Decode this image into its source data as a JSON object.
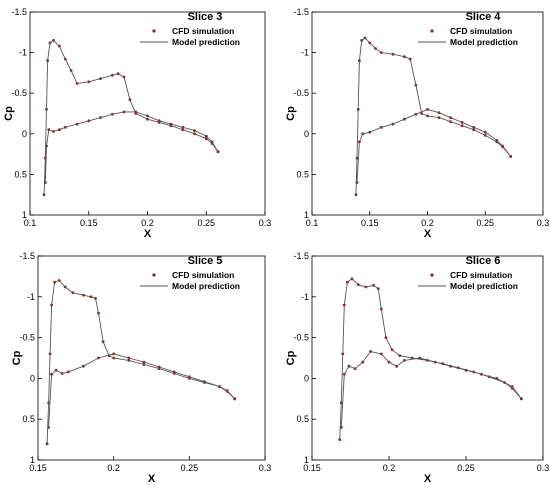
{
  "figure": {
    "bg": "#ffffff"
  },
  "colors": {
    "cfd": "#9b1b1b",
    "model": "#555555",
    "axis": "#000000"
  },
  "chart_data": [
    {
      "type": "line",
      "title": "Slice 3",
      "xlabel": "X",
      "ylabel": "Cp",
      "xlim": [
        0.1,
        0.3
      ],
      "ylim": [
        1,
        -1.5
      ],
      "y_inverted": true,
      "xticks": [
        "0.1",
        "0.15",
        "0.2",
        "0.25",
        "0.3"
      ],
      "xtick_values": [
        0.1,
        0.15,
        0.2,
        0.25,
        0.3
      ],
      "yticks": [
        "-1.5",
        "-1",
        "-0.5",
        "0",
        "0.5",
        "1"
      ],
      "ytick_values": [
        -1.5,
        -1,
        -0.5,
        0,
        0.5,
        1
      ],
      "legend": {
        "placement": "top-right",
        "entries": [
          "CFD simulation",
          "Model prediction"
        ]
      },
      "series": [
        {
          "name": "CFD simulation",
          "style": "markers",
          "x": [
            0.112,
            0.113,
            0.114,
            0.115,
            0.117,
            0.12,
            0.125,
            0.13,
            0.135,
            0.14,
            0.15,
            0.16,
            0.17,
            0.175,
            0.18,
            0.185,
            0.19,
            0.2,
            0.21,
            0.22,
            0.23,
            0.24,
            0.25,
            0.255,
            0.26,
            0.113,
            0.114,
            0.116,
            0.12,
            0.125,
            0.13,
            0.14,
            0.15,
            0.16,
            0.17,
            0.18,
            0.19,
            0.2,
            0.21,
            0.22,
            0.23,
            0.24,
            0.25,
            0.255,
            0.26
          ],
          "y": [
            0.75,
            0.3,
            -0.3,
            -0.9,
            -1.12,
            -1.15,
            -1.08,
            -0.92,
            -0.78,
            -0.62,
            -0.64,
            -0.68,
            -0.72,
            -0.74,
            -0.7,
            -0.42,
            -0.25,
            -0.18,
            -0.14,
            -0.1,
            -0.05,
            0.0,
            0.06,
            0.12,
            0.22,
            0.6,
            0.15,
            -0.05,
            -0.03,
            -0.05,
            -0.08,
            -0.12,
            -0.16,
            -0.2,
            -0.24,
            -0.27,
            -0.27,
            -0.22,
            -0.16,
            -0.12,
            -0.08,
            -0.04,
            0.03,
            0.1,
            0.22
          ]
        },
        {
          "name": "Model prediction",
          "style": "line",
          "x": [
            0.112,
            0.113,
            0.114,
            0.115,
            0.117,
            0.12,
            0.125,
            0.13,
            0.135,
            0.14,
            0.15,
            0.16,
            0.17,
            0.175,
            0.18,
            0.185,
            0.19,
            0.2,
            0.21,
            0.22,
            0.23,
            0.24,
            0.25,
            0.255,
            0.26,
            0.113,
            0.114,
            0.116,
            0.12,
            0.125,
            0.13,
            0.14,
            0.15,
            0.16,
            0.17,
            0.18,
            0.19,
            0.2,
            0.21,
            0.22,
            0.23,
            0.24,
            0.25,
            0.255,
            0.26
          ],
          "y": [
            0.75,
            0.3,
            -0.3,
            -0.9,
            -1.12,
            -1.15,
            -1.08,
            -0.92,
            -0.78,
            -0.62,
            -0.64,
            -0.68,
            -0.72,
            -0.74,
            -0.7,
            -0.42,
            -0.25,
            -0.18,
            -0.14,
            -0.1,
            -0.05,
            0.0,
            0.06,
            0.12,
            0.22,
            0.6,
            0.15,
            -0.05,
            -0.03,
            -0.05,
            -0.08,
            -0.12,
            -0.16,
            -0.2,
            -0.24,
            -0.27,
            -0.27,
            -0.22,
            -0.16,
            -0.12,
            -0.08,
            -0.04,
            0.03,
            0.1,
            0.22
          ]
        }
      ]
    },
    {
      "type": "line",
      "title": "Slice 4",
      "xlabel": "X",
      "ylabel": "Cp",
      "xlim": [
        0.1,
        0.3
      ],
      "ylim": [
        1,
        -1.5
      ],
      "y_inverted": true,
      "xticks": [
        "0.1",
        "0.15",
        "0.2",
        "0.25",
        "0.3"
      ],
      "xtick_values": [
        0.1,
        0.15,
        0.2,
        0.25,
        0.3
      ],
      "yticks": [
        "-1.5",
        "-1",
        "-0.5",
        "0",
        "0.5",
        "1"
      ],
      "ytick_values": [
        -1.5,
        -1,
        -0.5,
        0,
        0.5,
        1
      ],
      "legend": {
        "placement": "top-right",
        "entries": [
          "CFD simulation",
          "Model prediction"
        ]
      },
      "series": [
        {
          "name": "CFD simulation",
          "style": "markers",
          "x": [
            0.138,
            0.139,
            0.14,
            0.141,
            0.143,
            0.146,
            0.15,
            0.155,
            0.16,
            0.17,
            0.18,
            0.185,
            0.19,
            0.195,
            0.2,
            0.21,
            0.22,
            0.23,
            0.24,
            0.25,
            0.26,
            0.265,
            0.272,
            0.139,
            0.141,
            0.144,
            0.15,
            0.16,
            0.17,
            0.18,
            0.19,
            0.2,
            0.21,
            0.22,
            0.23,
            0.24,
            0.25,
            0.26,
            0.265,
            0.272
          ],
          "y": [
            0.75,
            0.3,
            -0.3,
            -0.9,
            -1.15,
            -1.18,
            -1.12,
            -1.05,
            -1.0,
            -0.98,
            -0.95,
            -0.92,
            -0.6,
            -0.25,
            -0.22,
            -0.2,
            -0.15,
            -0.1,
            -0.05,
            0.02,
            0.1,
            0.16,
            0.28,
            0.6,
            0.1,
            0.0,
            -0.02,
            -0.08,
            -0.12,
            -0.18,
            -0.24,
            -0.3,
            -0.26,
            -0.2,
            -0.14,
            -0.08,
            -0.02,
            0.08,
            0.15,
            0.28
          ]
        },
        {
          "name": "Model prediction",
          "style": "line",
          "x": [
            0.138,
            0.139,
            0.14,
            0.141,
            0.143,
            0.146,
            0.15,
            0.155,
            0.16,
            0.17,
            0.18,
            0.185,
            0.19,
            0.195,
            0.2,
            0.21,
            0.22,
            0.23,
            0.24,
            0.25,
            0.26,
            0.265,
            0.272,
            0.139,
            0.141,
            0.144,
            0.15,
            0.16,
            0.17,
            0.18,
            0.19,
            0.2,
            0.21,
            0.22,
            0.23,
            0.24,
            0.25,
            0.26,
            0.265,
            0.272
          ],
          "y": [
            0.75,
            0.3,
            -0.3,
            -0.9,
            -1.15,
            -1.18,
            -1.12,
            -1.05,
            -1.0,
            -0.98,
            -0.95,
            -0.92,
            -0.6,
            -0.25,
            -0.22,
            -0.2,
            -0.15,
            -0.1,
            -0.05,
            0.02,
            0.1,
            0.16,
            0.28,
            0.6,
            0.1,
            0.0,
            -0.02,
            -0.08,
            -0.12,
            -0.18,
            -0.24,
            -0.3,
            -0.26,
            -0.2,
            -0.14,
            -0.08,
            -0.02,
            0.08,
            0.15,
            0.28
          ]
        }
      ]
    },
    {
      "type": "line",
      "title": "Slice 5",
      "xlabel": "X",
      "ylabel": "Cp",
      "xlim": [
        0.15,
        0.3
      ],
      "ylim": [
        1,
        -1.5
      ],
      "y_inverted": true,
      "xticks": [
        "0.15",
        "0.2",
        "0.25",
        "0.3"
      ],
      "xtick_values": [
        0.15,
        0.2,
        0.25,
        0.3
      ],
      "yticks": [
        "-1.5",
        "-1",
        "-0.5",
        "0",
        "0.5",
        "1"
      ],
      "ytick_values": [
        -1.5,
        -1,
        -0.5,
        0,
        0.5,
        1
      ],
      "legend": {
        "placement": "top-right",
        "entries": [
          "CFD simulation",
          "Model prediction"
        ]
      },
      "series": [
        {
          "name": "CFD simulation",
          "style": "markers",
          "x": [
            0.156,
            0.157,
            0.158,
            0.159,
            0.161,
            0.164,
            0.168,
            0.173,
            0.18,
            0.185,
            0.188,
            0.19,
            0.193,
            0.197,
            0.2,
            0.21,
            0.22,
            0.23,
            0.24,
            0.25,
            0.26,
            0.27,
            0.275,
            0.28,
            0.157,
            0.159,
            0.162,
            0.166,
            0.17,
            0.18,
            0.19,
            0.2,
            0.21,
            0.22,
            0.23,
            0.24,
            0.25,
            0.26,
            0.27,
            0.275,
            0.28
          ],
          "y": [
            0.8,
            0.3,
            -0.3,
            -0.9,
            -1.18,
            -1.2,
            -1.12,
            -1.05,
            -1.02,
            -1.0,
            -0.98,
            -0.8,
            -0.45,
            -0.28,
            -0.25,
            -0.22,
            -0.17,
            -0.12,
            -0.06,
            0.0,
            0.05,
            0.1,
            0.16,
            0.25,
            0.6,
            -0.05,
            -0.1,
            -0.06,
            -0.08,
            -0.15,
            -0.25,
            -0.3,
            -0.25,
            -0.2,
            -0.14,
            -0.08,
            -0.02,
            0.04,
            0.1,
            0.15,
            0.25
          ]
        },
        {
          "name": "Model prediction",
          "style": "line",
          "x": [
            0.156,
            0.157,
            0.158,
            0.159,
            0.161,
            0.164,
            0.168,
            0.173,
            0.18,
            0.185,
            0.188,
            0.19,
            0.193,
            0.197,
            0.2,
            0.21,
            0.22,
            0.23,
            0.24,
            0.25,
            0.26,
            0.27,
            0.275,
            0.28,
            0.157,
            0.159,
            0.162,
            0.166,
            0.17,
            0.18,
            0.19,
            0.2,
            0.21,
            0.22,
            0.23,
            0.24,
            0.25,
            0.26,
            0.27,
            0.275,
            0.28
          ],
          "y": [
            0.8,
            0.3,
            -0.3,
            -0.9,
            -1.18,
            -1.2,
            -1.12,
            -1.05,
            -1.02,
            -1.0,
            -0.98,
            -0.8,
            -0.45,
            -0.28,
            -0.25,
            -0.22,
            -0.17,
            -0.12,
            -0.06,
            0.0,
            0.05,
            0.1,
            0.16,
            0.25,
            0.6,
            -0.05,
            -0.1,
            -0.06,
            -0.08,
            -0.15,
            -0.25,
            -0.3,
            -0.25,
            -0.2,
            -0.14,
            -0.08,
            -0.02,
            0.04,
            0.1,
            0.15,
            0.25
          ]
        }
      ]
    },
    {
      "type": "line",
      "title": "Slice 6",
      "xlabel": "X",
      "ylabel": "Cp",
      "xlim": [
        0.15,
        0.3
      ],
      "ylim": [
        1,
        -1.5
      ],
      "y_inverted": true,
      "xticks": [
        "0.15",
        "0.2",
        "0.25",
        "0.3"
      ],
      "xtick_values": [
        0.15,
        0.2,
        0.25,
        0.3
      ],
      "yticks": [
        "-1.5",
        "-1",
        "-0.5",
        "0",
        "0.5",
        "1"
      ],
      "ytick_values": [
        -1.5,
        -1,
        -0.5,
        0,
        0.5,
        1
      ],
      "legend": {
        "placement": "top-right",
        "entries": [
          "CFD simulation",
          "Model prediction"
        ]
      },
      "series": [
        {
          "name": "CFD simulation",
          "style": "markers",
          "x": [
            0.168,
            0.169,
            0.17,
            0.171,
            0.173,
            0.176,
            0.18,
            0.185,
            0.19,
            0.193,
            0.195,
            0.198,
            0.202,
            0.207,
            0.215,
            0.225,
            0.235,
            0.245,
            0.255,
            0.265,
            0.275,
            0.28,
            0.286,
            0.169,
            0.171,
            0.174,
            0.178,
            0.183,
            0.188,
            0.195,
            0.2,
            0.205,
            0.21,
            0.22,
            0.23,
            0.24,
            0.25,
            0.26,
            0.27,
            0.28,
            0.286
          ],
          "y": [
            0.75,
            0.3,
            -0.3,
            -0.9,
            -1.18,
            -1.22,
            -1.15,
            -1.12,
            -1.14,
            -1.1,
            -0.85,
            -0.5,
            -0.35,
            -0.28,
            -0.25,
            -0.22,
            -0.18,
            -0.13,
            -0.08,
            -0.02,
            0.05,
            0.12,
            0.25,
            0.6,
            -0.05,
            -0.15,
            -0.12,
            -0.2,
            -0.33,
            -0.3,
            -0.2,
            -0.15,
            -0.22,
            -0.25,
            -0.2,
            -0.15,
            -0.1,
            -0.05,
            0.0,
            0.1,
            0.25
          ]
        },
        {
          "name": "Model prediction",
          "style": "line",
          "x": [
            0.168,
            0.169,
            0.17,
            0.171,
            0.173,
            0.176,
            0.18,
            0.185,
            0.19,
            0.193,
            0.195,
            0.198,
            0.202,
            0.207,
            0.215,
            0.225,
            0.235,
            0.245,
            0.255,
            0.265,
            0.275,
            0.28,
            0.286,
            0.169,
            0.171,
            0.174,
            0.178,
            0.183,
            0.188,
            0.195,
            0.2,
            0.205,
            0.21,
            0.22,
            0.23,
            0.24,
            0.25,
            0.26,
            0.27,
            0.28,
            0.286
          ],
          "y": [
            0.75,
            0.3,
            -0.3,
            -0.9,
            -1.18,
            -1.22,
            -1.15,
            -1.12,
            -1.14,
            -1.1,
            -0.85,
            -0.5,
            -0.35,
            -0.28,
            -0.25,
            -0.22,
            -0.18,
            -0.13,
            -0.08,
            -0.02,
            0.05,
            0.12,
            0.25,
            0.6,
            -0.05,
            -0.15,
            -0.12,
            -0.2,
            -0.33,
            -0.3,
            -0.2,
            -0.15,
            -0.22,
            -0.25,
            -0.2,
            -0.15,
            -0.1,
            -0.05,
            0.0,
            0.1,
            0.25
          ]
        }
      ]
    }
  ]
}
